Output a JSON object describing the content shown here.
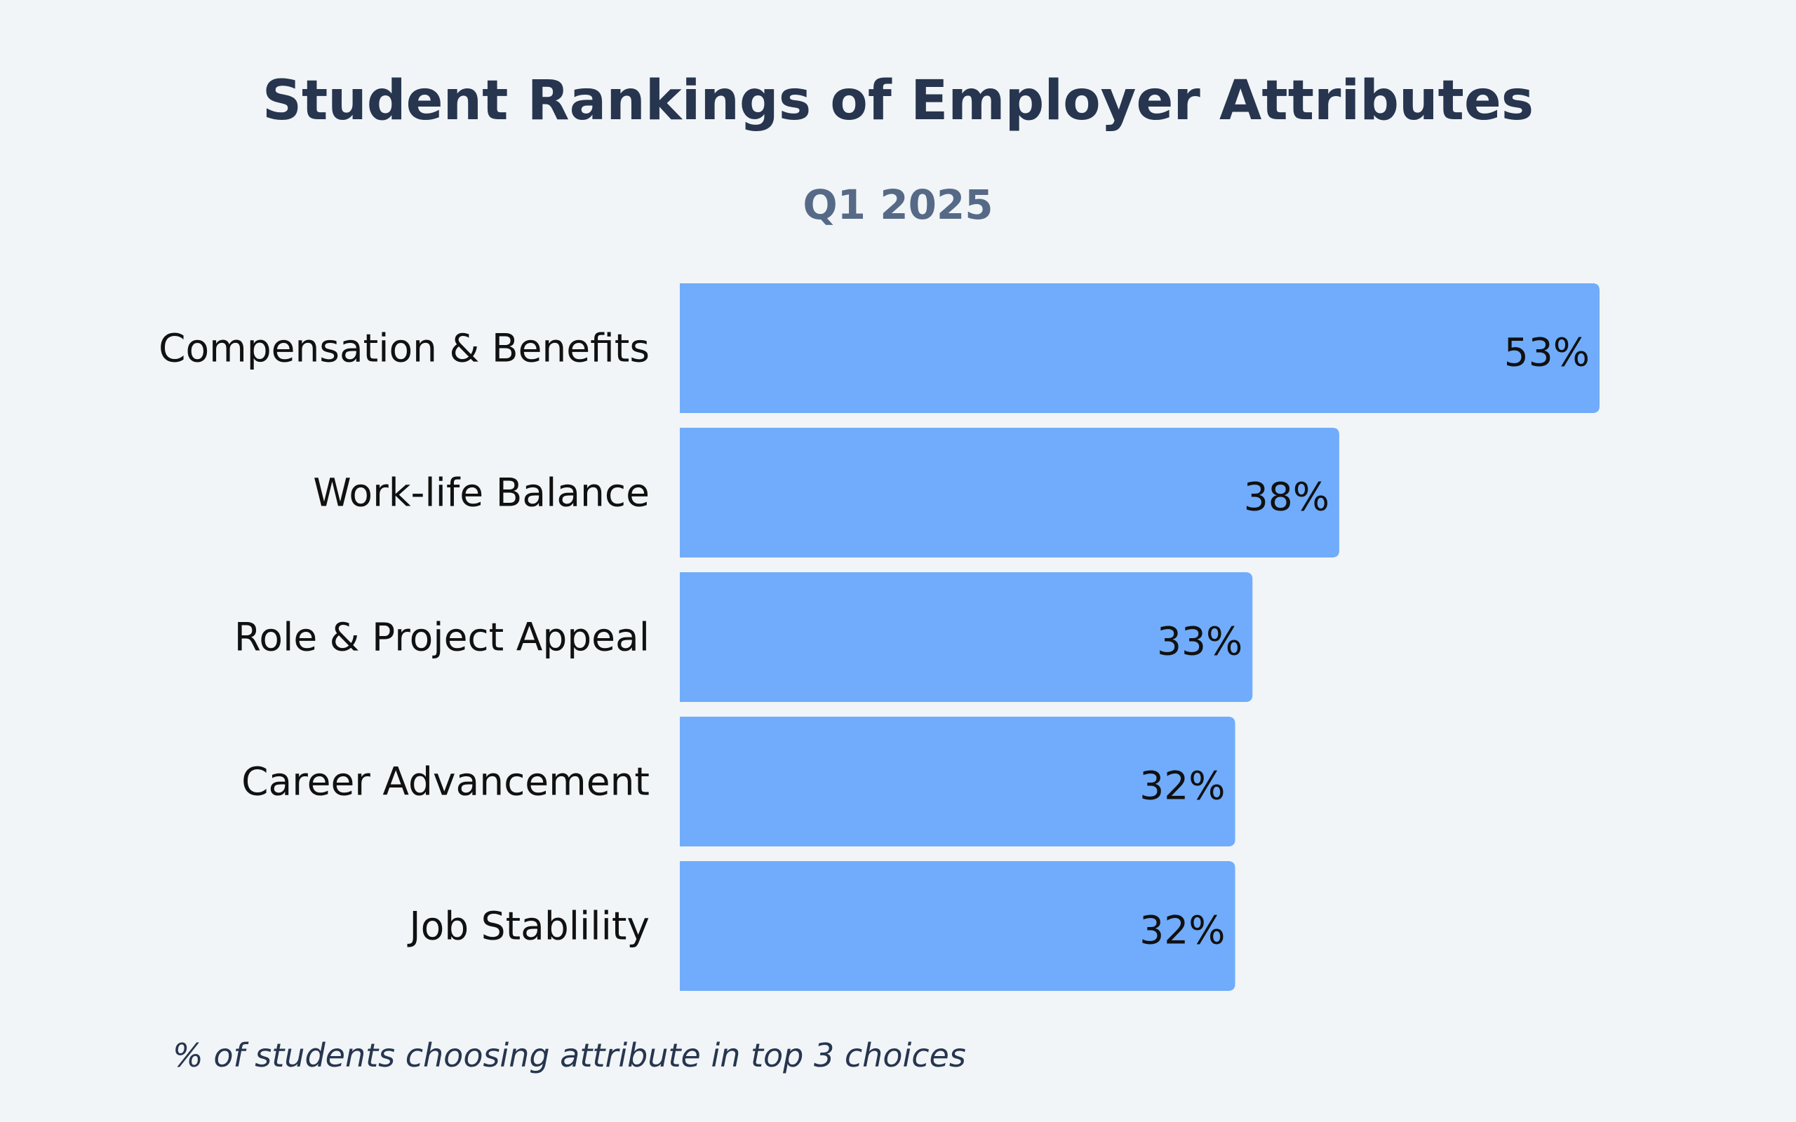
{
  "colors": {
    "background": "#f1f5f7",
    "bar": "#70acfb",
    "title": "#27354f",
    "subtitle": "#566a87",
    "text": "#111111"
  },
  "chart_data": {
    "type": "bar",
    "orientation": "horizontal",
    "title": "Student Rankings of Employer Attributes",
    "subtitle": "Q1 2025",
    "categories": [
      "Compensation & Benefits",
      "Work-life Balance",
      "Role & Project Appeal",
      "Career Advancement",
      "Job Stablility"
    ],
    "values": [
      53,
      38,
      33,
      32,
      32
    ],
    "value_labels": [
      "53%",
      "38%",
      "33%",
      "32%",
      "32%"
    ],
    "footnote": "% of students choosing attribute in top 3 choices",
    "xlim": [
      0,
      53
    ],
    "grid": false,
    "legend": "none"
  }
}
